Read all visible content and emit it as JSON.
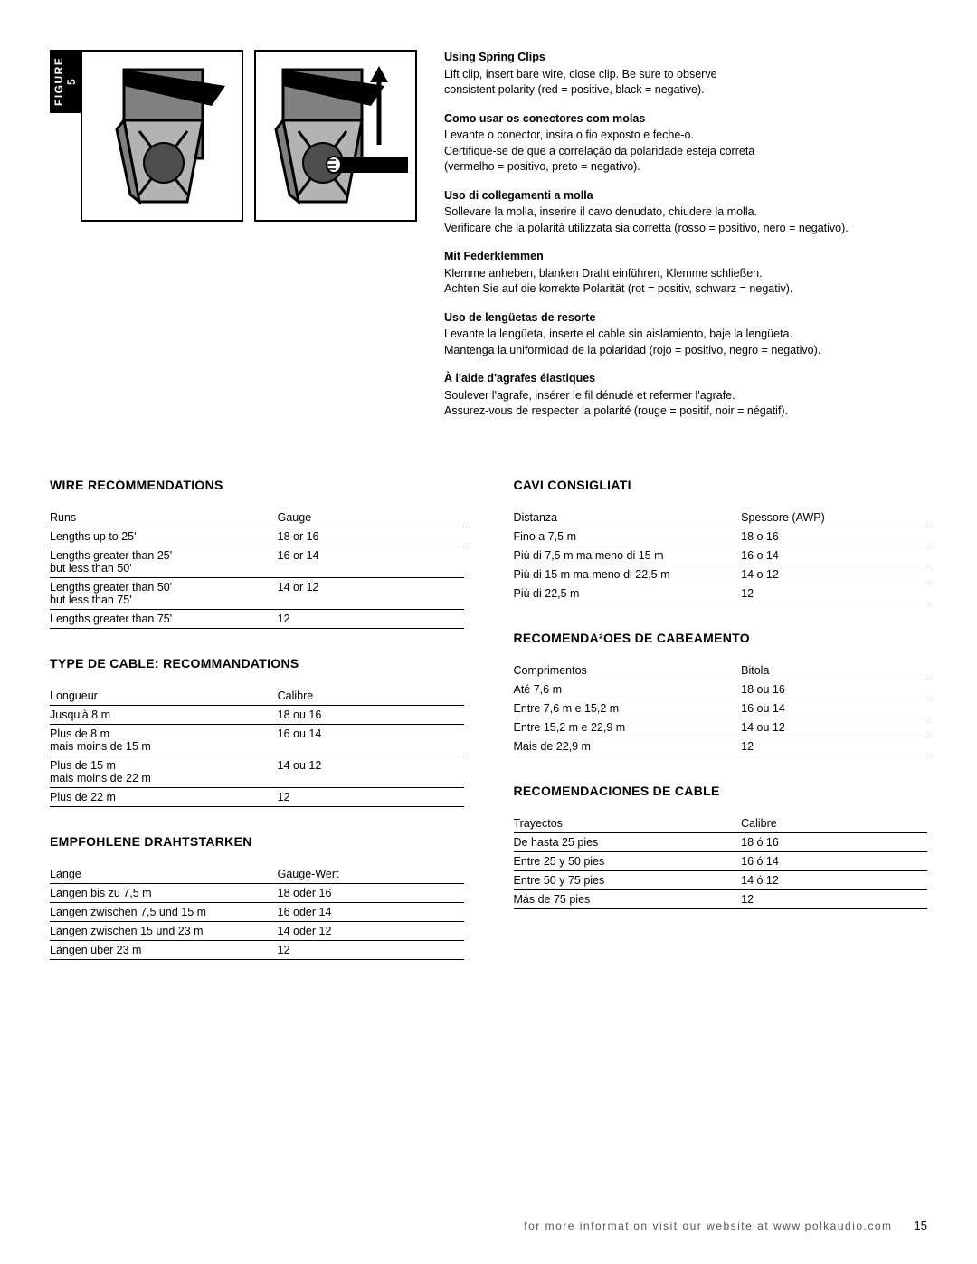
{
  "figure_label": "FIGURE 5",
  "instructions": [
    {
      "title": "Using Spring Clips",
      "lines": [
        "Lift clip, insert bare wire, close clip. Be sure to observe",
        "consistent polarity (red = positive, black = negative)."
      ]
    },
    {
      "title": "Como usar os conectores com molas",
      "lines": [
        "Levante o conector, insira o fio exposto e feche-o.",
        "Certifique-se de que a correlação da polaridade esteja correta",
        "(vermelho = positivo, preto = negativo)."
      ]
    },
    {
      "title": "Uso di collegamenti a molla",
      "lines": [
        "Sollevare la molla, inserire il cavo denudato, chiudere la molla.",
        "Verificare che la polarità utilizzata sia corretta (rosso = positivo, nero = negativo)."
      ]
    },
    {
      "title": "Mit Federklemmen",
      "lines": [
        "Klemme anheben, blanken Draht einführen, Klemme schließen.",
        "Achten Sie auf die korrekte Polarität (rot = positiv, schwarz = negativ)."
      ]
    },
    {
      "title": "Uso de lengüetas de resorte",
      "lines": [
        "Levante la lengüeta, inserte el cable sin aislamiento, baje la lengüeta.",
        "Mantenga la uniformidad de la polaridad (rojo = positivo, negro = negativo)."
      ]
    },
    {
      "title": "À l'aide d'agrafes élastiques",
      "lines": [
        "Soulever l'agrafe, insérer le fil dénudé et refermer l'agrafe.",
        "Assurez-vous de respecter la polarité (rouge = positif, noir = négatif)."
      ]
    }
  ],
  "left_sections": [
    {
      "title": "WIRE RECOMMENDATIONS",
      "header": [
        "Runs",
        "Gauge"
      ],
      "rows": [
        [
          "Lengths up to 25'",
          "18 or 16"
        ],
        [
          "Lengths greater than 25'\nbut less than 50'",
          "16 or 14"
        ],
        [
          "Lengths greater than 50'\nbut less than 75'",
          "14 or 12"
        ],
        [
          "Lengths greater than 75'",
          "12"
        ]
      ]
    },
    {
      "title": "TYPE DE CABLE: RECOMMANDATIONS",
      "header": [
        "Longueur",
        "Calibre"
      ],
      "rows": [
        [
          "Jusqu'à 8 m",
          "18 ou 16"
        ],
        [
          "Plus de 8 m\nmais moins de 15 m",
          "16 ou 14"
        ],
        [
          "Plus de 15 m\nmais moins de 22 m",
          "14 ou 12"
        ],
        [
          "Plus de 22 m",
          "12"
        ]
      ]
    },
    {
      "title": "EMPFOHLENE DRAHTSTARKEN",
      "header": [
        "Länge",
        "Gauge-Wert"
      ],
      "rows": [
        [
          "Längen bis zu 7,5 m",
          "18 oder 16"
        ],
        [
          "Längen zwischen 7,5 und 15 m",
          "16 oder 14"
        ],
        [
          "Längen zwischen 15 und 23 m",
          "14 oder 12"
        ],
        [
          "Längen über 23 m",
          "12"
        ]
      ]
    }
  ],
  "right_sections": [
    {
      "title": "CAVI CONSIGLIATI",
      "header": [
        "Distanza",
        "Spessore (AWP)"
      ],
      "rows": [
        [
          "Fino a 7,5 m",
          "18 o 16"
        ],
        [
          "Più di 7,5 m ma meno di 15 m",
          "16 o 14"
        ],
        [
          "Più di 15 m ma meno di 22,5 m",
          "14 o 12"
        ],
        [
          "Più di 22,5 m",
          "12"
        ]
      ]
    },
    {
      "title": "RECOMENDA²OES DE CABEAMENTO",
      "header": [
        "Comprimentos",
        "Bitola"
      ],
      "rows": [
        [
          "Até 7,6 m",
          "18 ou 16"
        ],
        [
          "Entre 7,6 m e 15,2 m",
          "16 ou 14"
        ],
        [
          "Entre 15,2 m e 22,9 m",
          "14 ou 12"
        ],
        [
          "Mais de 22,9 m",
          "12"
        ]
      ]
    },
    {
      "title": "RECOMENDACIONES DE CABLE",
      "header": [
        "Trayectos",
        "Calibre"
      ],
      "rows": [
        [
          "De hasta 25 pies",
          "18 ó 16"
        ],
        [
          "Entre 25 y 50  pies",
          "16 ó 14"
        ],
        [
          "Entre 50 y 75  pies",
          "14 ó 12"
        ],
        [
          "Más de 75  pies",
          "12"
        ]
      ]
    }
  ],
  "footer_text": "for more information visit our website at www.polkaudio.com",
  "page_number": "15",
  "colors": {
    "black": "#000000",
    "white": "#ffffff",
    "gray": "#808080",
    "dark_gray": "#4d4d4d",
    "light_gray": "#b3b3b3"
  }
}
